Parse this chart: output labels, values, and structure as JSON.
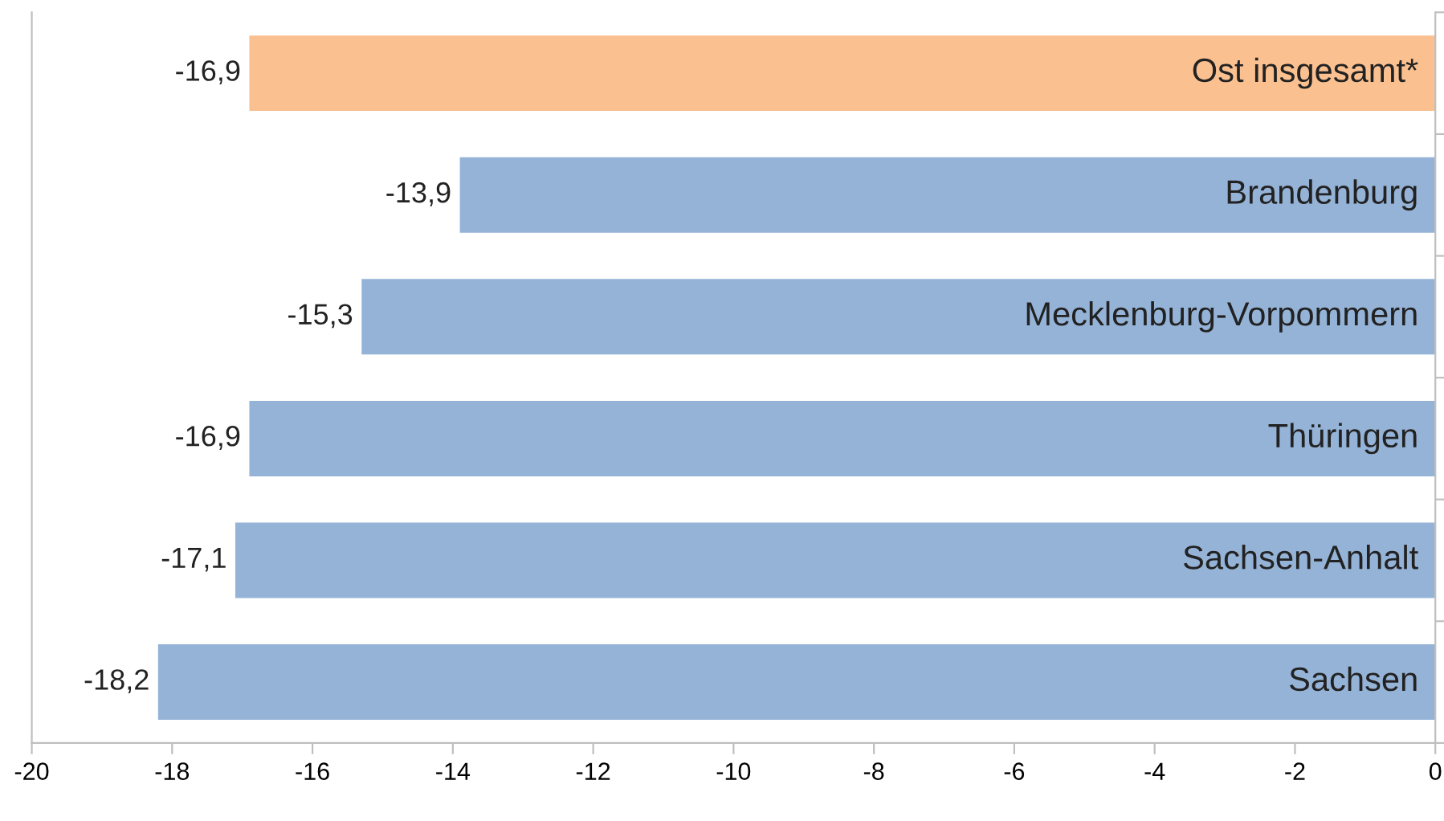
{
  "chart_data": {
    "type": "bar",
    "orientation": "horizontal",
    "categories": [
      "Ost insgesamt*",
      "Brandenburg",
      "Mecklenburg-Vorpommern",
      "Thüringen",
      "Sachsen-Anhalt",
      "Sachsen"
    ],
    "values": [
      -16.9,
      -13.9,
      -15.3,
      -16.9,
      -17.1,
      -18.2
    ],
    "colors": [
      "#fac090",
      "#95b3d7",
      "#95b3d7",
      "#95b3d7",
      "#95b3d7",
      "#95b3d7"
    ],
    "value_labels": [
      "-16,9",
      "-13,9",
      "-15,3",
      "-16,9",
      "-17,1",
      "-18,2"
    ],
    "xlim": [
      -20,
      0
    ],
    "xticks": [
      -20,
      -18,
      -16,
      -14,
      -12,
      -10,
      -8,
      -6,
      -4,
      -2,
      0
    ],
    "grid": false,
    "legend": false
  }
}
